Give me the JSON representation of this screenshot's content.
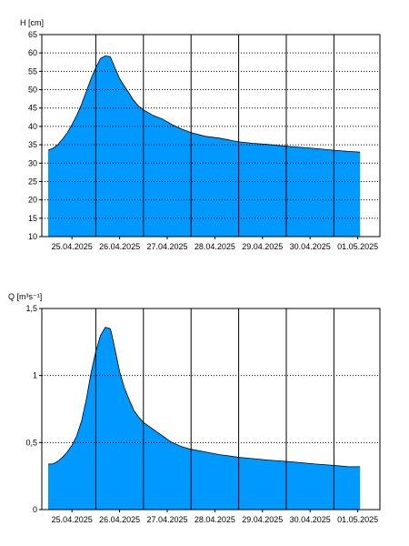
{
  "colors": {
    "fill": "#0099ff",
    "outline": "#000000",
    "frame": "#000000",
    "grid": "#000000",
    "background": "#ffffff"
  },
  "chart_data": [
    {
      "type": "area",
      "ylabel": "H [cm]",
      "ylim": [
        10,
        65
      ],
      "yticks": [
        "10",
        "15",
        "20",
        "25",
        "30",
        "35",
        "40",
        "45",
        "50",
        "55",
        "60",
        "65"
      ],
      "xticks": [
        "25.04.2025",
        "26.04.2025",
        "27.04.2025",
        "28.04.2025",
        "29.04.2025",
        "30.04.2025",
        "01.05.2025"
      ],
      "grid": "vertical lines at day boundaries, dotted horizontal lines at y ticks",
      "x_days": [
        0,
        0.1,
        0.2,
        0.3,
        0.4,
        0.5,
        0.6,
        0.7,
        0.8,
        0.9,
        1.0,
        1.1,
        1.2,
        1.3,
        1.32,
        1.4,
        1.5,
        1.6,
        1.7,
        1.8,
        1.9,
        2.0,
        2.2,
        2.4,
        2.6,
        2.8,
        3.0,
        3.3,
        3.6,
        4.0,
        4.3,
        4.6,
        5.0,
        5.3,
        5.6,
        6.0,
        6.3,
        6.55
      ],
      "values": [
        33.5,
        34.0,
        35.0,
        36.5,
        38.3,
        40.5,
        43.0,
        46.0,
        49.5,
        53.0,
        56.0,
        58.5,
        59.2,
        59.0,
        58.5,
        56.0,
        53.0,
        51.0,
        49.0,
        47.0,
        45.5,
        44.5,
        43.0,
        42.0,
        40.5,
        39.3,
        38.3,
        37.3,
        36.8,
        35.8,
        35.4,
        35.1,
        34.6,
        34.3,
        34.0,
        33.5,
        33.2,
        33.0
      ]
    },
    {
      "type": "area",
      "ylabel": "Q [m³s⁻¹]",
      "ylim": [
        0,
        1.5
      ],
      "yticks": [
        "0",
        "0,5",
        "1",
        "1,5"
      ],
      "yticks_values": [
        0,
        0.5,
        1,
        1.5
      ],
      "xticks": [
        "25.04.2025",
        "26.04.2025",
        "27.04.2025",
        "28.04.2025",
        "29.04.2025",
        "30.04.2025",
        "01.05.2025"
      ],
      "grid": "vertical lines at day boundaries, dotted horizontal lines at y ticks",
      "x_days": [
        0,
        0.1,
        0.2,
        0.3,
        0.4,
        0.5,
        0.6,
        0.7,
        0.8,
        0.9,
        1.0,
        1.1,
        1.2,
        1.3,
        1.32,
        1.4,
        1.5,
        1.6,
        1.7,
        1.8,
        1.9,
        2.0,
        2.2,
        2.4,
        2.6,
        2.8,
        3.0,
        3.3,
        3.6,
        4.0,
        4.3,
        4.6,
        5.0,
        5.3,
        5.6,
        6.0,
        6.3,
        6.55
      ],
      "values": [
        0.34,
        0.34,
        0.36,
        0.39,
        0.43,
        0.48,
        0.55,
        0.66,
        0.82,
        1.02,
        1.18,
        1.3,
        1.36,
        1.35,
        1.33,
        1.2,
        1.03,
        0.91,
        0.82,
        0.74,
        0.69,
        0.65,
        0.6,
        0.55,
        0.5,
        0.47,
        0.45,
        0.43,
        0.41,
        0.39,
        0.38,
        0.37,
        0.36,
        0.35,
        0.34,
        0.33,
        0.32,
        0.32
      ]
    }
  ]
}
